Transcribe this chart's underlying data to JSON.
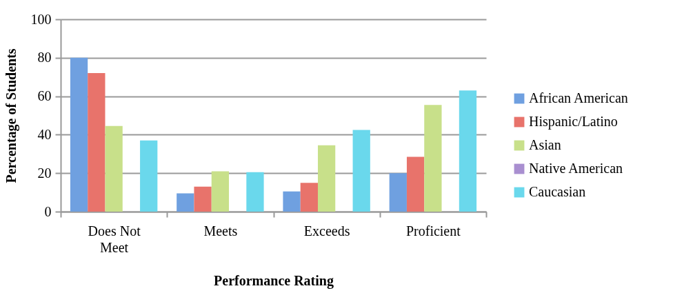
{
  "chart_data": {
    "type": "bar",
    "xlabel": "Performance Rating",
    "ylabel": "Percentage of Students",
    "categories": [
      "Does Not Meet",
      "Meets",
      "Exceeds",
      "Proficient"
    ],
    "series": [
      {
        "name": "African American",
        "color": "#6fa0e0",
        "values": [
          80,
          9.5,
          10.5,
          20
        ]
      },
      {
        "name": "Hispanic/Latino",
        "color": "#e8736b",
        "values": [
          72,
          13,
          15,
          28.5
        ]
      },
      {
        "name": "Asian",
        "color": "#c8e08a",
        "values": [
          44.5,
          21,
          34.5,
          55.5
        ]
      },
      {
        "name": "Native American",
        "color": "#a98fd0",
        "values": [
          0,
          0,
          0,
          0
        ]
      },
      {
        "name": "Caucasian",
        "color": "#6ad8ec",
        "values": [
          37,
          20.5,
          42.5,
          63
        ]
      }
    ],
    "ylim": [
      0,
      100
    ],
    "yticks": [
      0,
      20,
      40,
      60,
      80,
      100
    ],
    "grid": "y",
    "legend": "right"
  }
}
